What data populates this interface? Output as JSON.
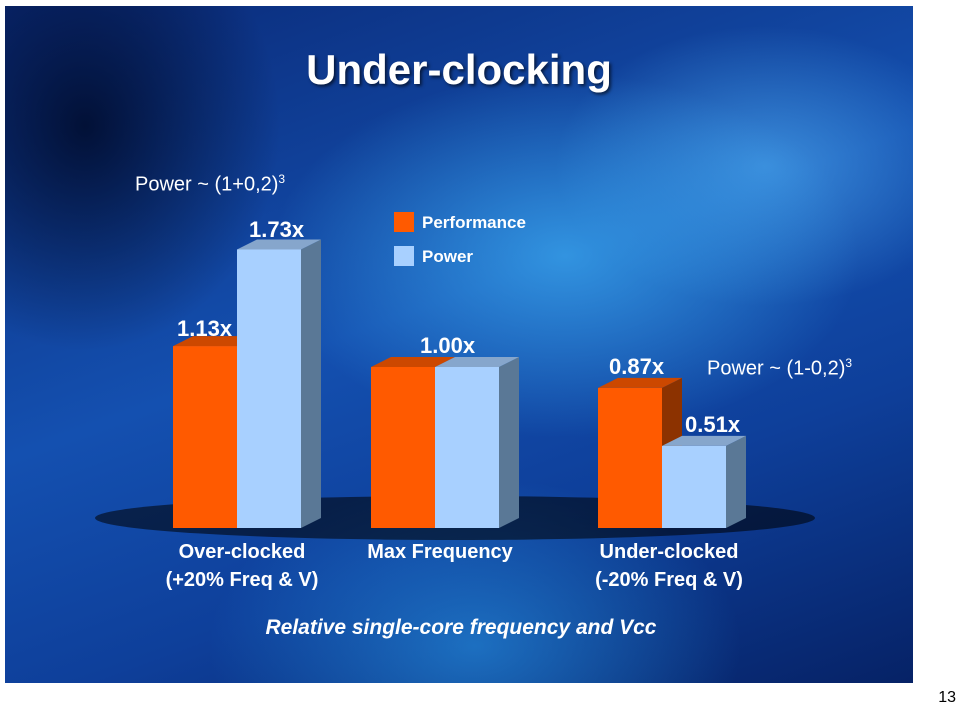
{
  "slide": {
    "title": "Under-clocking",
    "formula_left": {
      "prefix": "Power ~ (1+0,2)",
      "exponent": "3"
    },
    "formula_right": {
      "prefix": "Power ~ (1-0,2)",
      "exponent": "3"
    },
    "page_number": "13"
  },
  "colors": {
    "performance": "#ff5a00",
    "power": "#a8d0ff"
  },
  "chart_data": {
    "type": "bar",
    "categories": [
      [
        "Over-clocked",
        "(+20% Freq & V)"
      ],
      [
        "Max Frequency"
      ],
      [
        "Under-clocked",
        "(-20% Freq & V)"
      ]
    ],
    "series": [
      {
        "name": "Performance",
        "values": [
          1.13,
          1.0,
          0.87
        ]
      },
      {
        "name": "Power",
        "values": [
          1.73,
          1.0,
          0.51
        ]
      }
    ],
    "value_labels": [
      [
        "1.13x",
        "1.73x"
      ],
      [
        "1.00x"
      ],
      [
        "0.87x",
        "0.51x"
      ]
    ],
    "xlabel": "Relative single-core frequency and Vcc",
    "ylabel": "",
    "legend_position": "top-center",
    "grid": false
  }
}
